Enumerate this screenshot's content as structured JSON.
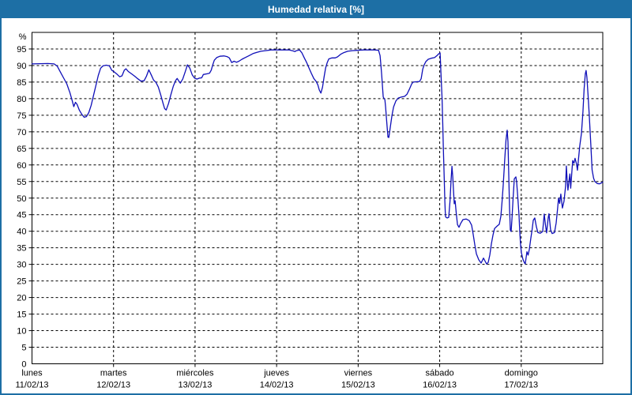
{
  "window": {
    "title": "Humedad relativa [%]"
  },
  "colors": {
    "titlebar_bg": "#1d6fa5",
    "frame_border": "#1d6fa5",
    "title_text": "#ffffff",
    "plot_border": "#000000",
    "gridline": "#000000",
    "line": "#0f0fb8"
  },
  "chart_data": {
    "type": "line",
    "title": "Humedad relativa [%]",
    "grid": "dashed",
    "legend": "none",
    "y_axis": {
      "unit": "%",
      "min": 0,
      "max": 100,
      "tick_step": 5,
      "ticks": [
        0,
        5,
        10,
        15,
        20,
        25,
        30,
        35,
        40,
        45,
        50,
        55,
        60,
        65,
        70,
        75,
        80,
        85,
        90,
        95
      ]
    },
    "x_axis": {
      "days": [
        {
          "name": "lunes",
          "date": "11/02/13"
        },
        {
          "name": "martes",
          "date": "12/02/13"
        },
        {
          "name": "miércoles",
          "date": "13/02/13"
        },
        {
          "name": "jueves",
          "date": "14/02/13"
        },
        {
          "name": "viernes",
          "date": "15/02/13"
        },
        {
          "name": "sábado",
          "date": "16/02/13"
        },
        {
          "name": "domingo",
          "date": "17/02/13"
        }
      ]
    },
    "series": [
      {
        "name": "Humedad relativa",
        "color": "#0f0fb8",
        "x_unit": "days_from_monday",
        "points": [
          [
            0.0,
            90.5
          ],
          [
            0.194,
            90.6
          ],
          [
            0.271,
            90.5
          ],
          [
            0.31,
            89.8
          ],
          [
            0.349,
            88.0
          ],
          [
            0.387,
            86.3
          ],
          [
            0.426,
            84.5
          ],
          [
            0.465,
            81.8
          ],
          [
            0.494,
            79.3
          ],
          [
            0.513,
            77.6
          ],
          [
            0.533,
            78.9
          ],
          [
            0.552,
            78.3
          ],
          [
            0.581,
            76.5
          ],
          [
            0.61,
            75.3
          ],
          [
            0.639,
            74.4
          ],
          [
            0.668,
            74.6
          ],
          [
            0.697,
            75.8
          ],
          [
            0.726,
            78.0
          ],
          [
            0.755,
            81.0
          ],
          [
            0.784,
            84.0
          ],
          [
            0.813,
            87.0
          ],
          [
            0.842,
            89.2
          ],
          [
            0.871,
            89.9
          ],
          [
            0.91,
            90.1
          ],
          [
            0.949,
            89.9
          ],
          [
            0.978,
            88.6
          ],
          [
            1.007,
            88.1
          ],
          [
            1.046,
            87.3
          ],
          [
            1.075,
            86.6
          ],
          [
            1.104,
            86.9
          ],
          [
            1.133,
            88.6
          ],
          [
            1.152,
            89.0
          ],
          [
            1.181,
            88.2
          ],
          [
            1.22,
            87.5
          ],
          [
            1.259,
            86.8
          ],
          [
            1.297,
            86.0
          ],
          [
            1.336,
            85.3
          ],
          [
            1.375,
            85.4
          ],
          [
            1.404,
            86.8
          ],
          [
            1.433,
            88.7
          ],
          [
            1.462,
            87.2
          ],
          [
            1.491,
            85.6
          ],
          [
            1.52,
            84.9
          ],
          [
            1.549,
            83.5
          ],
          [
            1.578,
            81.2
          ],
          [
            1.607,
            78.6
          ],
          [
            1.627,
            77.0
          ],
          [
            1.646,
            76.6
          ],
          [
            1.675,
            78.6
          ],
          [
            1.704,
            81.3
          ],
          [
            1.733,
            83.8
          ],
          [
            1.762,
            85.5
          ],
          [
            1.781,
            86.1
          ],
          [
            1.801,
            85.3
          ],
          [
            1.82,
            84.7
          ],
          [
            1.849,
            85.9
          ],
          [
            1.878,
            88.0
          ],
          [
            1.907,
            90.2
          ],
          [
            1.936,
            89.2
          ],
          [
            1.965,
            87.2
          ],
          [
            1.994,
            86.2
          ],
          [
            2.023,
            85.9
          ],
          [
            2.052,
            86.2
          ],
          [
            2.081,
            86.3
          ],
          [
            2.101,
            87.3
          ],
          [
            2.149,
            87.5
          ],
          [
            2.178,
            87.7
          ],
          [
            2.198,
            88.6
          ],
          [
            2.217,
            90.2
          ],
          [
            2.236,
            91.6
          ],
          [
            2.265,
            92.4
          ],
          [
            2.304,
            92.8
          ],
          [
            2.353,
            92.9
          ],
          [
            2.391,
            92.7
          ],
          [
            2.42,
            92.3
          ],
          [
            2.449,
            90.9
          ],
          [
            2.478,
            91.3
          ],
          [
            2.508,
            91.0
          ],
          [
            2.537,
            91.3
          ],
          [
            2.575,
            91.9
          ],
          [
            2.614,
            92.4
          ],
          [
            2.662,
            93.0
          ],
          [
            2.711,
            93.6
          ],
          [
            2.759,
            94.0
          ],
          [
            2.807,
            94.3
          ],
          [
            2.866,
            94.5
          ],
          [
            2.933,
            94.7
          ],
          [
            3.001,
            94.7
          ],
          [
            3.079,
            94.7
          ],
          [
            3.156,
            94.7
          ],
          [
            3.204,
            94.4
          ],
          [
            3.224,
            94.2
          ],
          [
            3.243,
            94.5
          ],
          [
            3.282,
            94.7
          ],
          [
            3.311,
            93.8
          ],
          [
            3.34,
            92.3
          ],
          [
            3.369,
            90.9
          ],
          [
            3.398,
            89.2
          ],
          [
            3.427,
            87.6
          ],
          [
            3.456,
            86.1
          ],
          [
            3.485,
            85.2
          ],
          [
            3.505,
            84.2
          ],
          [
            3.524,
            82.6
          ],
          [
            3.543,
            81.7
          ],
          [
            3.563,
            83.5
          ],
          [
            3.582,
            86.5
          ],
          [
            3.601,
            89.3
          ],
          [
            3.621,
            90.9
          ],
          [
            3.64,
            92.0
          ],
          [
            3.679,
            92.3
          ],
          [
            3.718,
            92.3
          ],
          [
            3.747,
            92.6
          ],
          [
            3.785,
            93.4
          ],
          [
            3.824,
            93.9
          ],
          [
            3.872,
            94.3
          ],
          [
            3.93,
            94.5
          ],
          [
            3.989,
            94.6
          ],
          [
            4.066,
            94.7
          ],
          [
            4.143,
            94.7
          ],
          [
            4.202,
            94.7
          ],
          [
            4.25,
            94.6
          ],
          [
            4.269,
            93.0
          ],
          [
            4.279,
            90.0
          ],
          [
            4.289,
            87.0
          ],
          [
            4.299,
            83.5
          ],
          [
            4.308,
            80.5
          ],
          [
            4.328,
            79.7
          ],
          [
            4.337,
            77.5
          ],
          [
            4.347,
            74.0
          ],
          [
            4.357,
            71.0
          ],
          [
            4.366,
            68.4
          ],
          [
            4.376,
            68.3
          ],
          [
            4.395,
            71.5
          ],
          [
            4.415,
            75.0
          ],
          [
            4.434,
            77.5
          ],
          [
            4.463,
            79.3
          ],
          [
            4.492,
            80.2
          ],
          [
            4.531,
            80.5
          ],
          [
            4.569,
            80.7
          ],
          [
            4.598,
            81.3
          ],
          [
            4.627,
            82.8
          ],
          [
            4.657,
            84.5
          ],
          [
            4.676,
            85.0
          ],
          [
            4.715,
            85.1
          ],
          [
            4.753,
            85.2
          ],
          [
            4.773,
            86.0
          ],
          [
            4.792,
            88.9
          ],
          [
            4.811,
            90.3
          ],
          [
            4.831,
            91.2
          ],
          [
            4.86,
            91.9
          ],
          [
            4.898,
            92.2
          ],
          [
            4.937,
            92.4
          ],
          [
            4.966,
            93.0
          ],
          [
            4.986,
            93.5
          ],
          [
            5.005,
            93.8
          ],
          [
            5.01,
            91.0
          ],
          [
            5.015,
            88.0
          ],
          [
            5.024,
            83.2
          ],
          [
            5.029,
            80.0
          ],
          [
            5.034,
            75.5
          ],
          [
            5.039,
            71.0
          ],
          [
            5.044,
            66.0
          ],
          [
            5.048,
            62.5
          ],
          [
            5.053,
            58.5
          ],
          [
            5.058,
            53.5
          ],
          [
            5.063,
            49.0
          ],
          [
            5.068,
            46.0
          ],
          [
            5.073,
            44.3
          ],
          [
            5.092,
            44.0
          ],
          [
            5.111,
            44.2
          ],
          [
            5.126,
            49.0
          ],
          [
            5.14,
            55.5
          ],
          [
            5.15,
            59.6
          ],
          [
            5.16,
            56.5
          ],
          [
            5.169,
            52.5
          ],
          [
            5.179,
            48.3
          ],
          [
            5.189,
            49.2
          ],
          [
            5.203,
            45.5
          ],
          [
            5.218,
            42.0
          ],
          [
            5.237,
            41.2
          ],
          [
            5.256,
            42.3
          ],
          [
            5.285,
            43.5
          ],
          [
            5.324,
            43.7
          ],
          [
            5.363,
            43.2
          ],
          [
            5.392,
            41.8
          ],
          [
            5.411,
            39.0
          ],
          [
            5.431,
            35.8
          ],
          [
            5.45,
            33.2
          ],
          [
            5.479,
            31.4
          ],
          [
            5.508,
            30.4
          ],
          [
            5.537,
            31.9
          ],
          [
            5.556,
            31.0
          ],
          [
            5.576,
            30.1
          ],
          [
            5.595,
            30.6
          ],
          [
            5.615,
            32.8
          ],
          [
            5.634,
            36.2
          ],
          [
            5.653,
            38.8
          ],
          [
            5.673,
            40.8
          ],
          [
            5.702,
            41.5
          ],
          [
            5.731,
            42.1
          ],
          [
            5.75,
            44.5
          ],
          [
            5.765,
            48.9
          ],
          [
            5.779,
            54.0
          ],
          [
            5.799,
            62.0
          ],
          [
            5.813,
            67.5
          ],
          [
            5.828,
            70.5
          ],
          [
            5.837,
            67.0
          ],
          [
            5.847,
            57.0
          ],
          [
            5.857,
            47.0
          ],
          [
            5.866,
            40.3
          ],
          [
            5.876,
            39.9
          ],
          [
            5.886,
            43.5
          ],
          [
            5.9,
            50.0
          ],
          [
            5.915,
            55.8
          ],
          [
            5.934,
            56.4
          ],
          [
            5.944,
            54.8
          ],
          [
            5.958,
            50.0
          ],
          [
            5.973,
            44.8
          ],
          [
            5.982,
            40.0
          ],
          [
            5.992,
            35.8
          ],
          [
            6.002,
            33.5
          ],
          [
            6.021,
            31.5
          ],
          [
            6.041,
            30.4
          ],
          [
            6.05,
            30.2
          ],
          [
            6.07,
            33.8
          ],
          [
            6.084,
            32.8
          ],
          [
            6.099,
            34.5
          ],
          [
            6.118,
            38.0
          ],
          [
            6.132,
            40.2
          ],
          [
            6.147,
            43.3
          ],
          [
            6.166,
            44.0
          ],
          [
            6.186,
            41.3
          ],
          [
            6.205,
            39.6
          ],
          [
            6.234,
            39.4
          ],
          [
            6.263,
            39.9
          ],
          [
            6.282,
            45.2
          ],
          [
            6.297,
            42.0
          ],
          [
            6.311,
            39.5
          ],
          [
            6.331,
            44.0
          ],
          [
            6.34,
            45.3
          ],
          [
            6.36,
            40.5
          ],
          [
            6.379,
            39.3
          ],
          [
            6.408,
            39.6
          ],
          [
            6.428,
            42.5
          ],
          [
            6.447,
            47.0
          ],
          [
            6.457,
            50.0
          ],
          [
            6.471,
            48.4
          ],
          [
            6.486,
            51.2
          ],
          [
            6.505,
            47.0
          ],
          [
            6.524,
            49.0
          ],
          [
            6.544,
            53.5
          ],
          [
            6.553,
            59.7
          ],
          [
            6.563,
            55.5
          ],
          [
            6.573,
            52.4
          ],
          [
            6.587,
            55.5
          ],
          [
            6.597,
            57.3
          ],
          [
            6.607,
            53.0
          ],
          [
            6.621,
            58.0
          ],
          [
            6.631,
            61.3
          ],
          [
            6.646,
            60.5
          ],
          [
            6.66,
            62.0
          ],
          [
            6.679,
            60.2
          ],
          [
            6.689,
            58.4
          ],
          [
            6.704,
            62.1
          ],
          [
            6.718,
            65.8
          ],
          [
            6.738,
            69.5
          ],
          [
            6.757,
            76.0
          ],
          [
            6.771,
            83.0
          ],
          [
            6.786,
            87.5
          ],
          [
            6.796,
            88.5
          ],
          [
            6.805,
            86.5
          ],
          [
            6.82,
            81.0
          ],
          [
            6.834,
            75.0
          ],
          [
            6.854,
            66.0
          ],
          [
            6.869,
            58.5
          ],
          [
            6.888,
            56.0
          ],
          [
            6.903,
            55.0
          ],
          [
            6.932,
            54.4
          ],
          [
            6.961,
            54.3
          ],
          [
            7.0,
            54.8
          ]
        ]
      }
    ]
  }
}
